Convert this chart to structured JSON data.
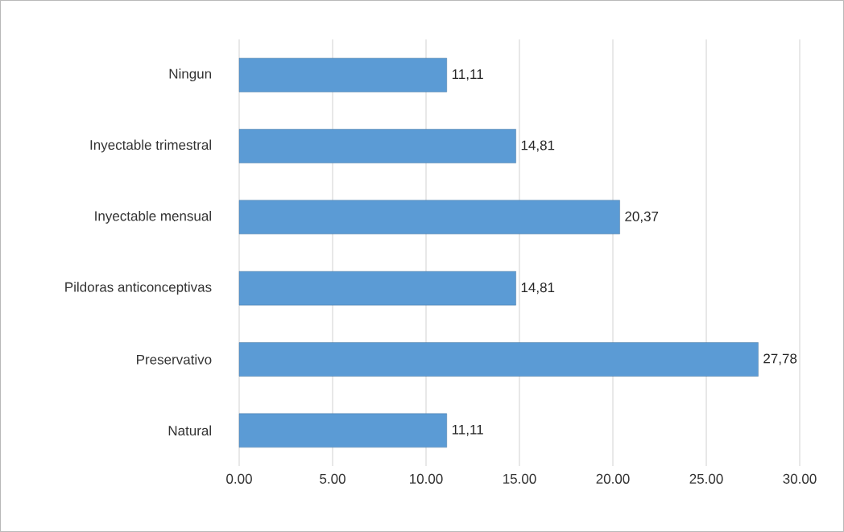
{
  "chart_data": {
    "type": "bar",
    "orientation": "horizontal",
    "categories": [
      "Ningun",
      "Inyectable trimestral",
      "Inyectable mensual",
      "Pildoras anticonceptivas",
      "Preservativo",
      "Natural"
    ],
    "values": [
      11.11,
      14.81,
      20.37,
      14.81,
      27.78,
      11.11
    ],
    "value_labels": [
      "11,11",
      "14,81",
      "20,37",
      "14,81",
      "27,78",
      "11,11"
    ],
    "color": "#5b9bd5",
    "xlim": [
      0,
      30
    ],
    "xticks": [
      {
        "value": 0,
        "label": "0.00"
      },
      {
        "value": 5,
        "label": "5.00"
      },
      {
        "value": 10,
        "label": "10.00"
      },
      {
        "value": 15,
        "label": "15.00"
      },
      {
        "value": 20,
        "label": "20.00"
      },
      {
        "value": 25,
        "label": "25.00"
      },
      {
        "value": 30,
        "label": "30.00"
      }
    ],
    "grid": "x"
  }
}
